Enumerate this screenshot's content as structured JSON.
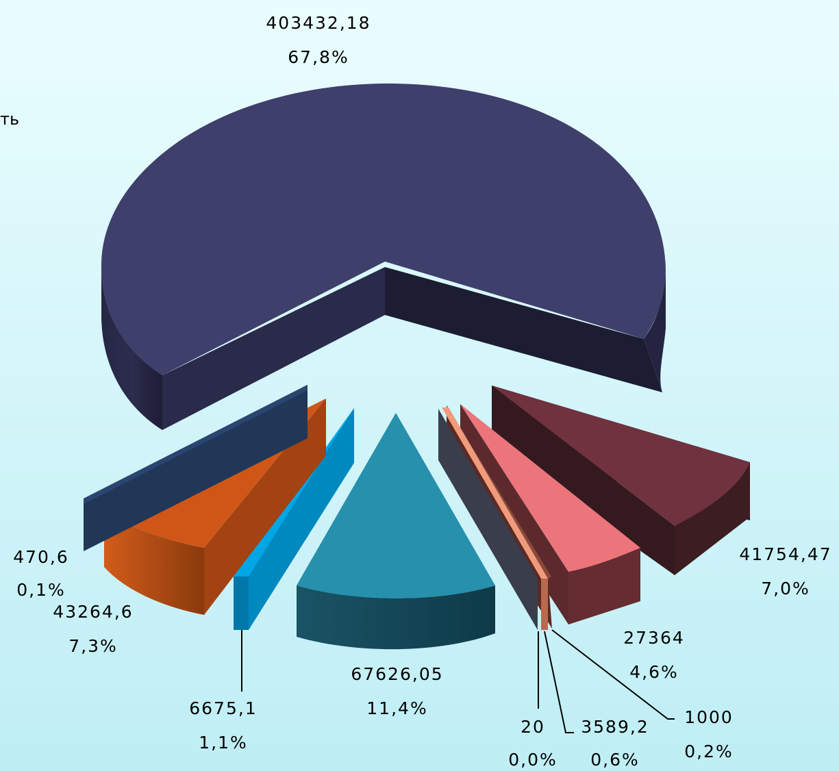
{
  "legend_fragment": "ть",
  "chart_data": {
    "type": "pie",
    "three_d": true,
    "exploded": true,
    "slices": [
      {
        "value": "403432,18",
        "percent": "67,8%",
        "color": "#3f3f6b"
      },
      {
        "value": "41754,47",
        "percent": "7,0%",
        "color": "#70323f"
      },
      {
        "value": "27364",
        "percent": "4,6%",
        "color": "#ec757b"
      },
      {
        "value": "1000",
        "percent": "0,2%",
        "color": "#8a4a3a"
      },
      {
        "value": "3589,2",
        "percent": "0,6%",
        "color": "#ef9b7c"
      },
      {
        "value": "20",
        "percent": "0,0%",
        "color": "#3a3d4c"
      },
      {
        "value": "67626,05",
        "percent": "11,4%",
        "color": "#2690ad"
      },
      {
        "value": "6675,1",
        "percent": "1,1%",
        "color": "#00a6e6"
      },
      {
        "value": "43264,6",
        "percent": "7,3%",
        "color": "#d05618"
      },
      {
        "value": "470,6",
        "percent": "0,1%",
        "color": "#203758"
      }
    ]
  }
}
